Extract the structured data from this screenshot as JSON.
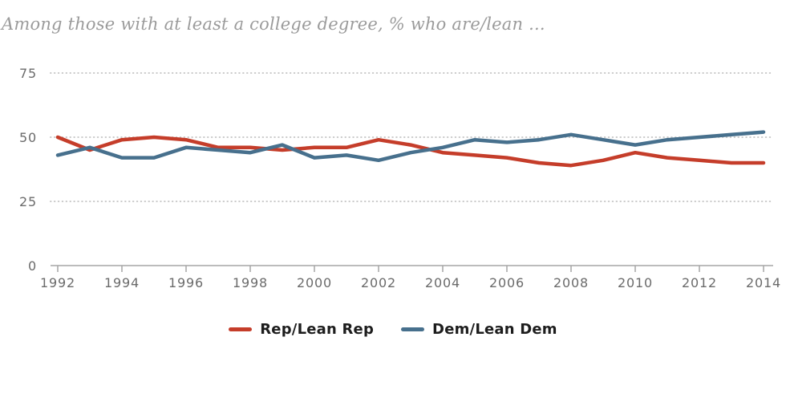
{
  "title": "Among those with at least a college degree, % who are/lean ...",
  "colors": {
    "rep": "#c53d2a",
    "dem": "#47708d",
    "grid": "#c9c9c9",
    "axis": "#a5a5a5",
    "tick_label": "#6b6b6b",
    "title": "#9b9b9b",
    "legend_text": "#1d1d1d"
  },
  "chart_data": {
    "type": "line",
    "title": "Among those with at least a college degree, % who are/lean ...",
    "x": [
      1992,
      1993,
      1994,
      1995,
      1996,
      1997,
      1998,
      1999,
      2000,
      2001,
      2002,
      2003,
      2004,
      2005,
      2006,
      2007,
      2008,
      2009,
      2010,
      2011,
      2012,
      2013,
      2014
    ],
    "series": [
      {
        "name": "Rep/Lean Rep",
        "color_key": "rep",
        "values": [
          50,
          45,
          49,
          50,
          49,
          46,
          46,
          45,
          46,
          46,
          49,
          47,
          44,
          43,
          42,
          40,
          39,
          41,
          44,
          42,
          41,
          40,
          40
        ]
      },
      {
        "name": "Dem/Lean Dem",
        "color_key": "dem",
        "values": [
          43,
          46,
          42,
          42,
          46,
          45,
          44,
          47,
          42,
          43,
          41,
          44,
          46,
          49,
          48,
          49,
          51,
          49,
          47,
          49,
          50,
          51,
          52
        ]
      }
    ],
    "xlim": [
      1992,
      2014
    ],
    "ylim": [
      0,
      75
    ],
    "yticks": [
      0,
      25,
      50,
      75
    ],
    "xticks": [
      1992,
      1994,
      1996,
      1998,
      2000,
      2002,
      2004,
      2006,
      2008,
      2010,
      2012,
      2014
    ],
    "grid": "horizontal-dotted",
    "legend_position": "bottom-center"
  },
  "legend": {
    "items": [
      {
        "label": "Rep/Lean Rep"
      },
      {
        "label": "Dem/Lean Dem"
      }
    ]
  }
}
